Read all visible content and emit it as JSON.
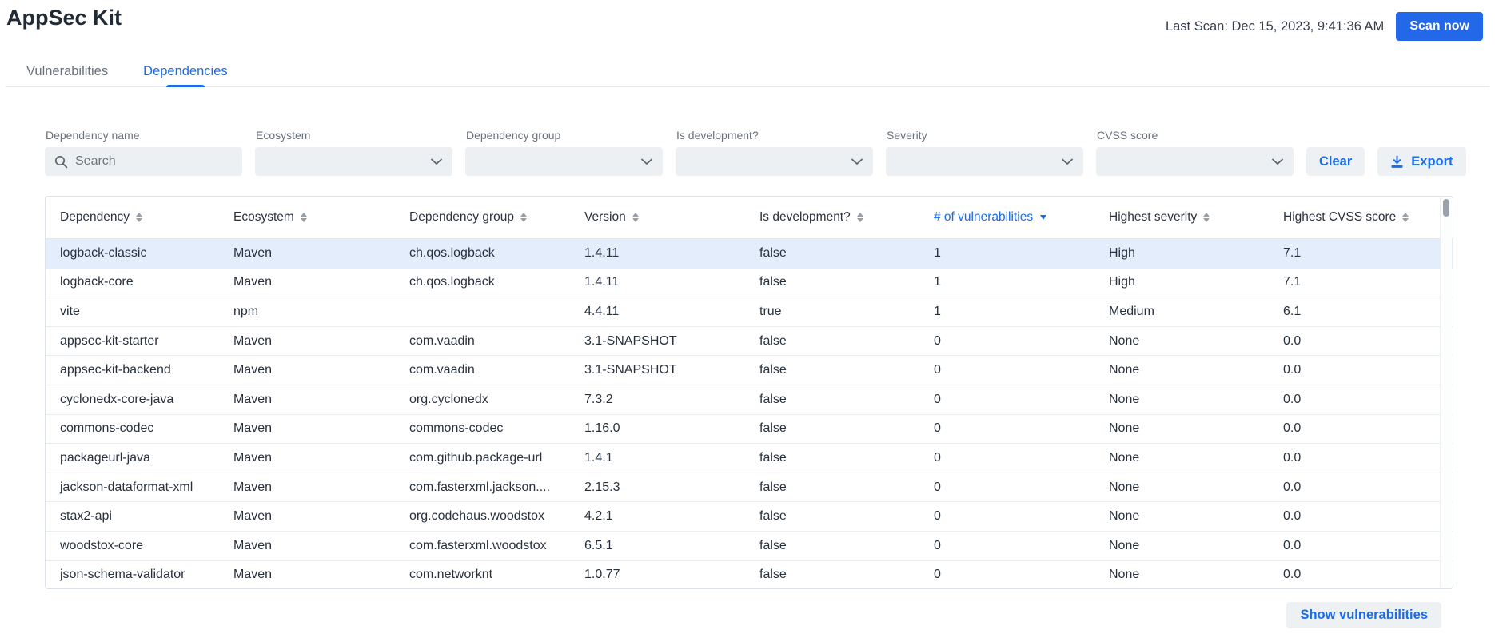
{
  "app": {
    "title": "AppSec Kit",
    "last_scan": "Last Scan: Dec 15, 2023, 9:41:36 AM",
    "scan_button": "Scan now"
  },
  "tabs": [
    {
      "label": "Vulnerabilities",
      "active": false
    },
    {
      "label": "Dependencies",
      "active": true
    }
  ],
  "filters": {
    "fields": [
      {
        "label": "Dependency name",
        "type": "search",
        "placeholder": "Search",
        "value": ""
      },
      {
        "label": "Ecosystem",
        "type": "select",
        "value": ""
      },
      {
        "label": "Dependency group",
        "type": "select",
        "value": ""
      },
      {
        "label": "Is development?",
        "type": "select",
        "value": ""
      },
      {
        "label": "Severity",
        "type": "select",
        "value": ""
      },
      {
        "label": "CVSS score",
        "type": "select",
        "value": ""
      }
    ],
    "clear_button": "Clear",
    "export_button": "Export"
  },
  "table": {
    "columns": [
      {
        "label": "Dependency",
        "sorted": false
      },
      {
        "label": "Ecosystem",
        "sorted": false
      },
      {
        "label": "Dependency group",
        "sorted": false
      },
      {
        "label": "Version",
        "sorted": false
      },
      {
        "label": "Is development?",
        "sorted": false
      },
      {
        "label": "# of vulnerabilities",
        "sorted": true,
        "direction": "desc"
      },
      {
        "label": "Highest severity",
        "sorted": false
      },
      {
        "label": "Highest CVSS score",
        "sorted": false
      }
    ],
    "selected_row_index": 0,
    "rows": [
      [
        "logback-classic",
        "Maven",
        "ch.qos.logback",
        "1.4.11",
        "false",
        "1",
        "High",
        "7.1"
      ],
      [
        "logback-core",
        "Maven",
        "ch.qos.logback",
        "1.4.11",
        "false",
        "1",
        "High",
        "7.1"
      ],
      [
        "vite",
        "npm",
        "",
        "4.4.11",
        "true",
        "1",
        "Medium",
        "6.1"
      ],
      [
        "appsec-kit-starter",
        "Maven",
        "com.vaadin",
        "3.1-SNAPSHOT",
        "false",
        "0",
        "None",
        "0.0"
      ],
      [
        "appsec-kit-backend",
        "Maven",
        "com.vaadin",
        "3.1-SNAPSHOT",
        "false",
        "0",
        "None",
        "0.0"
      ],
      [
        "cyclonedx-core-java",
        "Maven",
        "org.cyclonedx",
        "7.3.2",
        "false",
        "0",
        "None",
        "0.0"
      ],
      [
        "commons-codec",
        "Maven",
        "commons-codec",
        "1.16.0",
        "false",
        "0",
        "None",
        "0.0"
      ],
      [
        "packageurl-java",
        "Maven",
        "com.github.package-url",
        "1.4.1",
        "false",
        "0",
        "None",
        "0.0"
      ],
      [
        "jackson-dataformat-xml",
        "Maven",
        "com.fasterxml.jackson....",
        "2.15.3",
        "false",
        "0",
        "None",
        "0.0"
      ],
      [
        "stax2-api",
        "Maven",
        "org.codehaus.woodstox",
        "4.2.1",
        "false",
        "0",
        "None",
        "0.0"
      ],
      [
        "woodstox-core",
        "Maven",
        "com.fasterxml.woodstox",
        "6.5.1",
        "false",
        "0",
        "None",
        "0.0"
      ],
      [
        "json-schema-validator",
        "Maven",
        "com.networknt",
        "1.0.77",
        "false",
        "0",
        "None",
        "0.0"
      ]
    ]
  },
  "footer": {
    "show_vulnerabilities_button": "Show vulnerabilities"
  },
  "colors": {
    "primary_button": "#2268e8",
    "link_blue": "#1a6ce8",
    "selected_row": "#e3edfb",
    "field_background": "#ecf0f3"
  }
}
